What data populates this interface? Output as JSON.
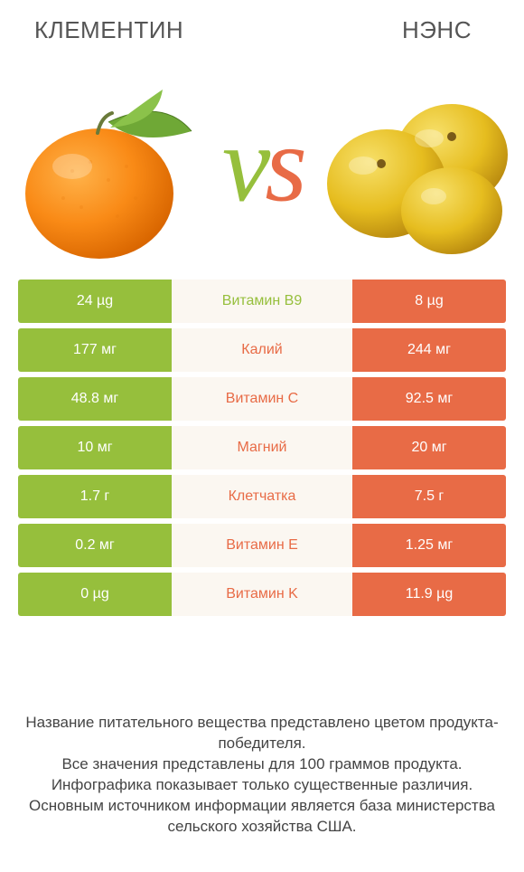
{
  "colors": {
    "left_product": "#96bf3c",
    "right_product": "#e86b46",
    "mid_bg": "#fbf7f1",
    "vs_v": "#96bf3c",
    "vs_s": "#e86b46",
    "title": "#555555",
    "note": "#444444"
  },
  "header": {
    "left_title": "КЛЕМЕНТИН",
    "right_title": "НЭНС",
    "vs_v": "v",
    "vs_s": "s"
  },
  "rows": [
    {
      "left": "24 µg",
      "name": "Витамин B9",
      "right": "8 µg",
      "winner": "left"
    },
    {
      "left": "177 мг",
      "name": "Калий",
      "right": "244 мг",
      "winner": "right"
    },
    {
      "left": "48.8 мг",
      "name": "Витамин C",
      "right": "92.5 мг",
      "winner": "right"
    },
    {
      "left": "10 мг",
      "name": "Магний",
      "right": "20 мг",
      "winner": "right"
    },
    {
      "left": "1.7 г",
      "name": "Клетчатка",
      "right": "7.5 г",
      "winner": "right"
    },
    {
      "left": "0.2 мг",
      "name": "Витамин E",
      "right": "1.25 мг",
      "winner": "right"
    },
    {
      "left": "0 µg",
      "name": "Витамин K",
      "right": "11.9 µg",
      "winner": "right"
    }
  ],
  "footnote": {
    "l1": "Название питательного вещества представлено цветом продукта-победителя.",
    "l2": "Все значения представлены для 100 граммов продукта.",
    "l3": "Инфографика показывает только существенные различия.",
    "l4": "Основным источником информации является база министерства сельского хозяйства США."
  }
}
